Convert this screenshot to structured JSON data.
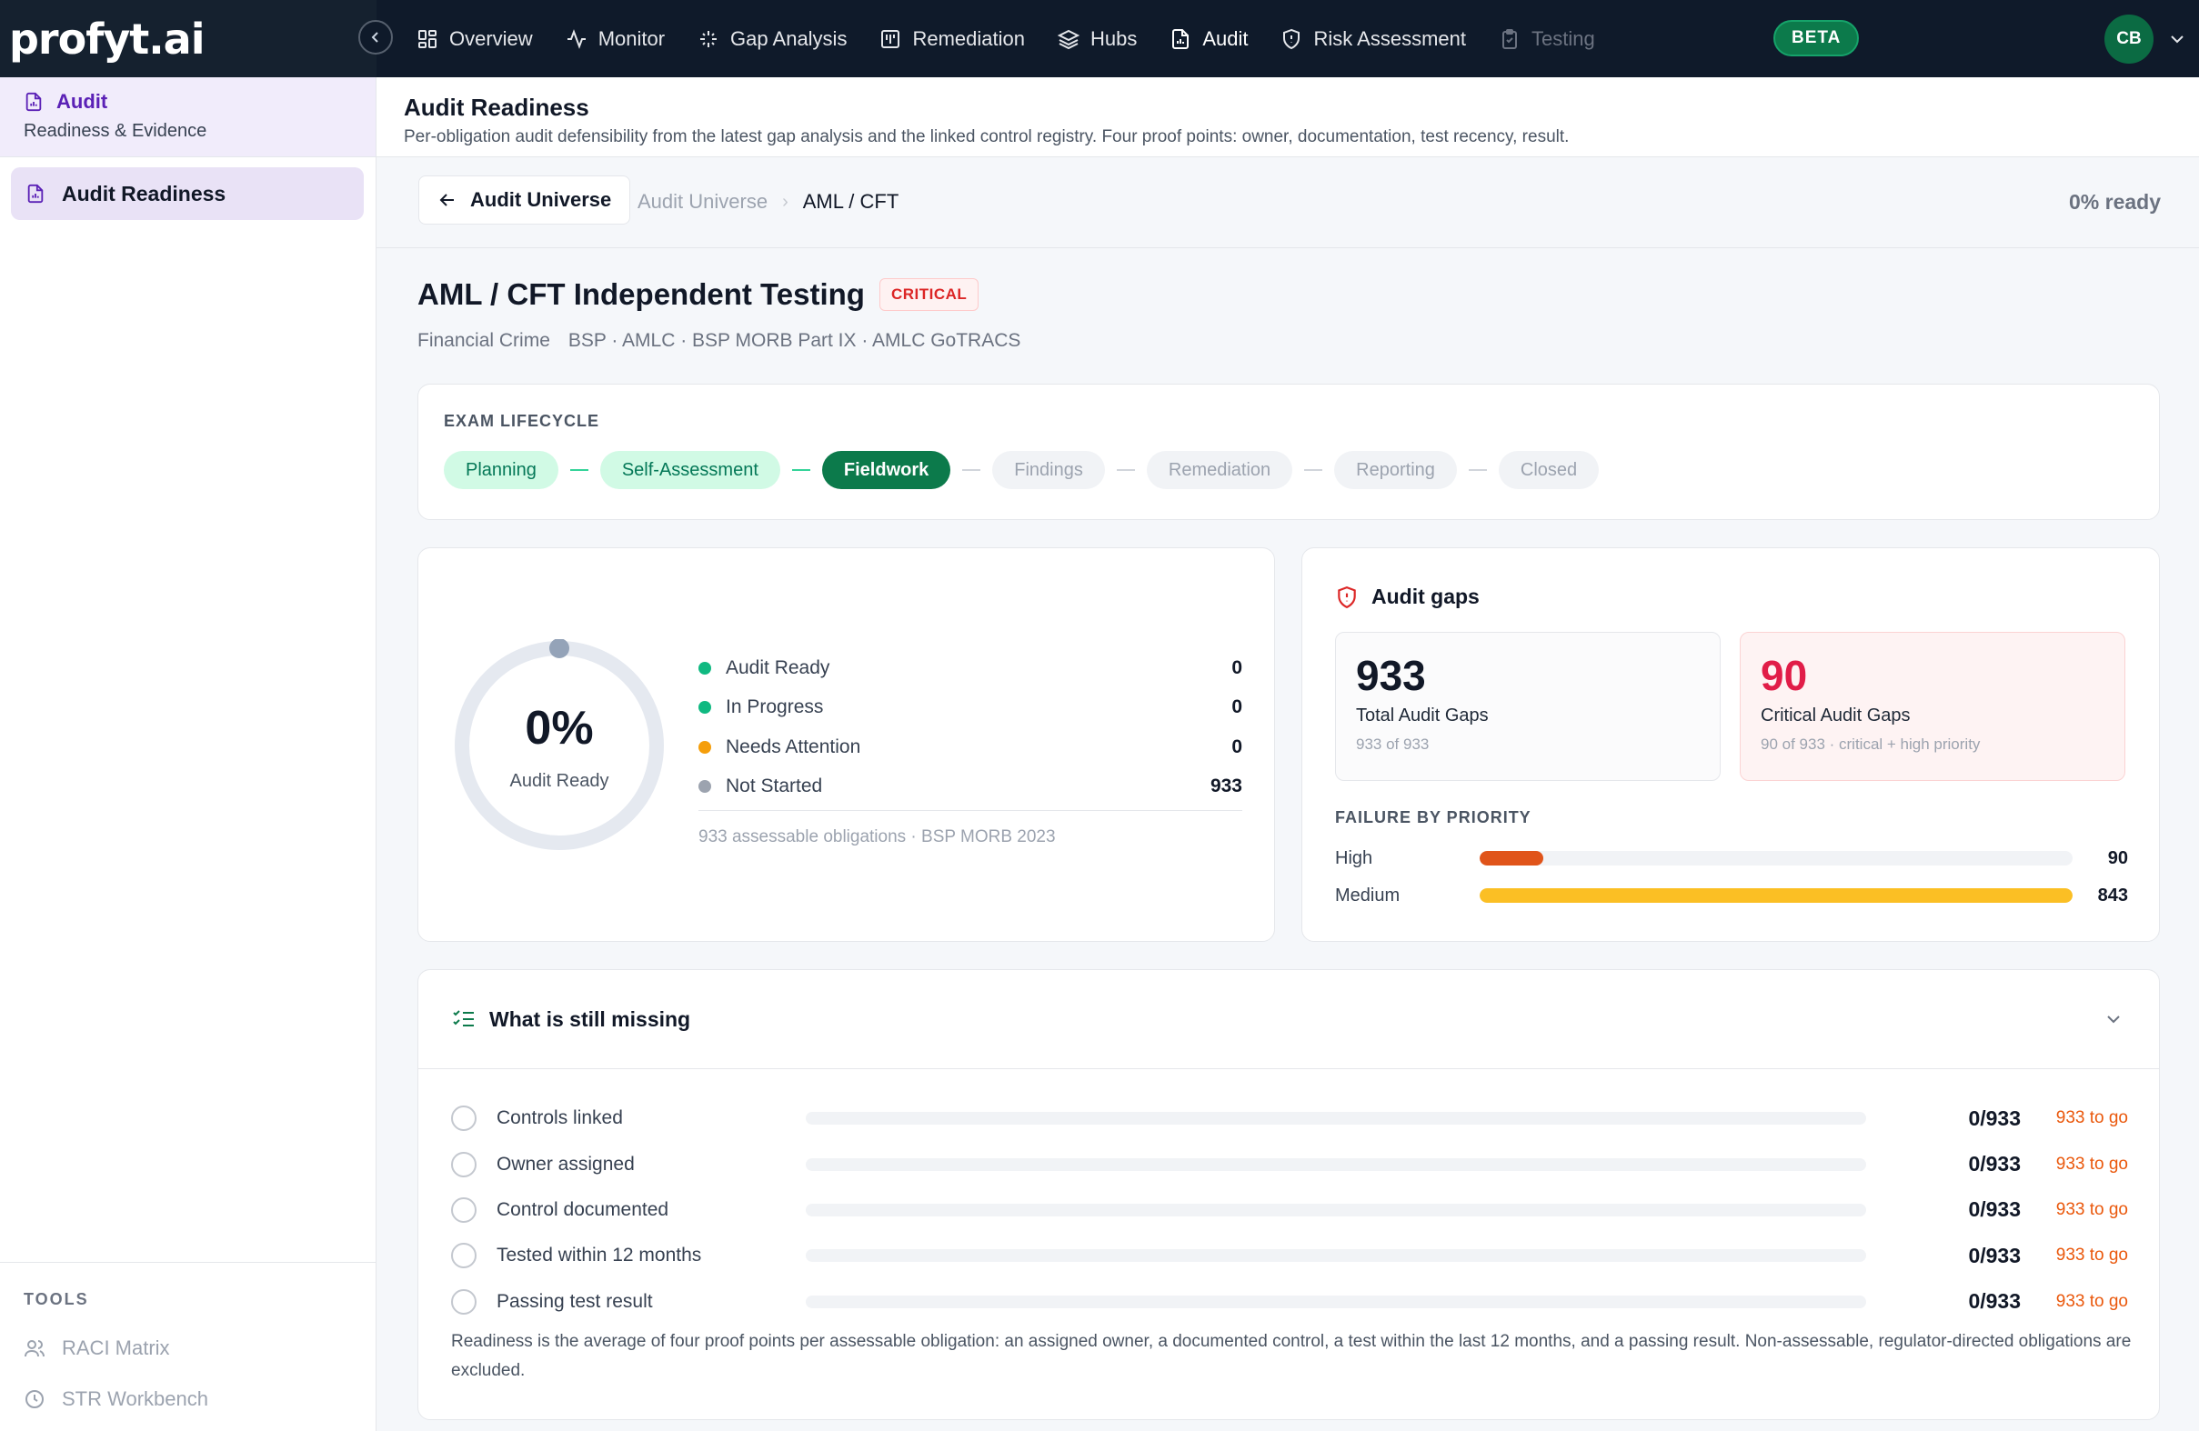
{
  "app": {
    "logo": "profyt.ai",
    "beta": "BETA",
    "avatar_initials": "CB"
  },
  "nav": [
    {
      "label": "Overview",
      "icon": "grid-icon",
      "state": "normal"
    },
    {
      "label": "Monitor",
      "icon": "activity-icon",
      "state": "normal"
    },
    {
      "label": "Gap Analysis",
      "icon": "sparkle-icon",
      "state": "normal"
    },
    {
      "label": "Remediation",
      "icon": "board-icon",
      "state": "normal"
    },
    {
      "label": "Hubs",
      "icon": "layers-icon",
      "state": "normal"
    },
    {
      "label": "Audit",
      "icon": "document-icon",
      "state": "active"
    },
    {
      "label": "Risk Assessment",
      "icon": "shield-icon",
      "state": "normal"
    },
    {
      "label": "Testing",
      "icon": "clipboard-icon",
      "state": "disabled"
    }
  ],
  "sidebar": {
    "section_title": "Audit",
    "section_subtitle": "Readiness & Evidence",
    "active_item": "Audit Readiness",
    "tools_label": "TOOLS",
    "tools": [
      "RACI Matrix",
      "STR Workbench"
    ]
  },
  "page": {
    "title": "Audit Readiness",
    "description": "Per-obligation audit defensibility from the latest gap analysis and the linked control registry. Four proof points: owner, documentation, test recency, result."
  },
  "breadcrumb": {
    "back_label": "Audit Universe",
    "root": "Audit Universe",
    "current": "AML / CFT",
    "ready_summary": "0% ready"
  },
  "obligation": {
    "title": "AML / CFT Independent Testing",
    "severity": "CRITICAL",
    "category": "Financial Crime",
    "references": "BSP · AMLC · BSP MORB Part IX · AMLC GoTRACS"
  },
  "lifecycle": {
    "label": "EXAM LIFECYCLE",
    "stages": [
      {
        "label": "Planning",
        "state": "done"
      },
      {
        "label": "Self-Assessment",
        "state": "done"
      },
      {
        "label": "Fieldwork",
        "state": "current"
      },
      {
        "label": "Findings",
        "state": "todo"
      },
      {
        "label": "Remediation",
        "state": "todo"
      },
      {
        "label": "Reporting",
        "state": "todo"
      },
      {
        "label": "Closed",
        "state": "todo"
      }
    ]
  },
  "readiness": {
    "percent_label": "0%",
    "percent_value": 0,
    "center_label": "Audit Ready",
    "statuses": [
      {
        "label": "Audit Ready",
        "value": "0",
        "color": "#10b981"
      },
      {
        "label": "In Progress",
        "value": "0",
        "color": "#10b981"
      },
      {
        "label": "Needs Attention",
        "value": "0",
        "color": "#f59e0b"
      },
      {
        "label": "Not Started",
        "value": "933",
        "color": "#9ca3af"
      }
    ],
    "footnote": "933 assessable obligations · BSP MORB 2023"
  },
  "gaps": {
    "title": "Audit gaps",
    "total": {
      "value": "933",
      "label": "Total Audit Gaps",
      "sub": "933 of 933"
    },
    "critical": {
      "value": "90",
      "label": "Critical Audit Gaps",
      "sub": "90 of 933 · critical + high priority"
    },
    "priority_label": "FAILURE BY PRIORITY",
    "priorities": [
      {
        "label": "High",
        "value": "90",
        "fraction": 0.107,
        "color": "#e0541a"
      },
      {
        "label": "Medium",
        "value": "843",
        "fraction": 1.0,
        "color": "#fbbf24"
      }
    ]
  },
  "missing": {
    "title": "What is still missing",
    "items": [
      {
        "label": "Controls linked",
        "count": "0/933",
        "togo": "933 to go"
      },
      {
        "label": "Owner assigned",
        "count": "0/933",
        "togo": "933 to go"
      },
      {
        "label": "Control documented",
        "count": "0/933",
        "togo": "933 to go"
      },
      {
        "label": "Tested within 12 months",
        "count": "0/933",
        "togo": "933 to go"
      },
      {
        "label": "Passing test result",
        "count": "0/933",
        "togo": "933 to go"
      }
    ],
    "note": "Readiness is the average of four proof points per assessable obligation: an assigned owner, a documented control, a test within the last 12 months, and a passing result. Non-assessable, regulator-directed obligations are excluded."
  }
}
